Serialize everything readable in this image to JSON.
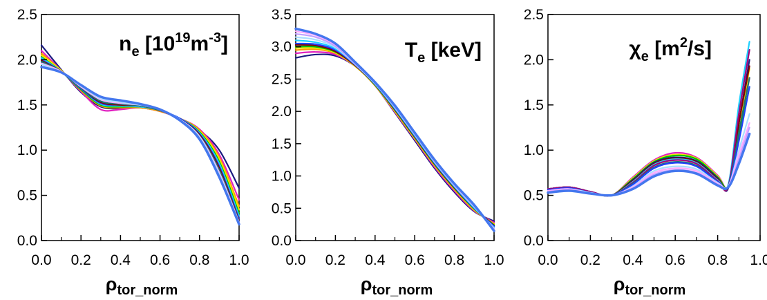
{
  "chart_data": [
    {
      "type": "line",
      "title": {
        "main": "n",
        "sub": "e",
        "rest_a": " [10",
        "sup": "19",
        "rest_b": "m",
        "sup2": "-3",
        "rest_c": "]"
      },
      "xlabel": {
        "main": "ρ",
        "sub": "tor_norm"
      },
      "xlim": [
        0,
        1
      ],
      "ylim": [
        0,
        2.5
      ],
      "xticks": [
        "0.0",
        "0.2",
        "0.4",
        "0.6",
        "0.8",
        "1.0"
      ],
      "yticks": [
        "0.0",
        "0.5",
        "1.0",
        "1.5",
        "2.0",
        "2.5"
      ],
      "x": [
        0,
        0.1,
        0.2,
        0.3,
        0.4,
        0.5,
        0.6,
        0.7,
        0.8,
        0.9,
        1.0
      ],
      "series": [
        {
          "color": "#1a1a80",
          "values": [
            2.16,
            1.89,
            1.64,
            1.48,
            1.46,
            1.47,
            1.43,
            1.35,
            1.22,
            1.0,
            0.58
          ]
        },
        {
          "color": "#e020c0",
          "values": [
            2.1,
            1.88,
            1.65,
            1.45,
            1.45,
            1.47,
            1.43,
            1.35,
            1.23,
            0.95,
            0.45
          ]
        },
        {
          "color": "#ff9900",
          "values": [
            2.07,
            1.88,
            1.66,
            1.49,
            1.47,
            1.47,
            1.43,
            1.35,
            1.22,
            0.92,
            0.38
          ]
        },
        {
          "color": "#f2e600",
          "values": [
            2.05,
            1.88,
            1.67,
            1.5,
            1.48,
            1.48,
            1.44,
            1.35,
            1.21,
            0.9,
            0.34
          ]
        },
        {
          "color": "#00c000",
          "values": [
            2.03,
            1.87,
            1.67,
            1.5,
            1.48,
            1.48,
            1.44,
            1.35,
            1.2,
            0.87,
            0.3
          ]
        },
        {
          "color": "#20d0ff",
          "values": [
            2.02,
            1.87,
            1.68,
            1.51,
            1.49,
            1.48,
            1.44,
            1.35,
            1.19,
            0.85,
            0.27
          ]
        },
        {
          "color": "#2040ff",
          "values": [
            2.0,
            1.87,
            1.68,
            1.52,
            1.5,
            1.49,
            1.44,
            1.35,
            1.18,
            0.82,
            0.24
          ]
        },
        {
          "color": "#800000",
          "values": [
            1.99,
            1.87,
            1.69,
            1.53,
            1.5,
            1.49,
            1.44,
            1.34,
            1.17,
            0.8,
            0.22
          ]
        },
        {
          "color": "#207070",
          "values": [
            1.98,
            1.87,
            1.69,
            1.54,
            1.51,
            1.49,
            1.44,
            1.34,
            1.16,
            0.78,
            0.21
          ]
        },
        {
          "color": "#ffaaff",
          "values": [
            1.96,
            1.87,
            1.7,
            1.56,
            1.52,
            1.5,
            1.45,
            1.34,
            1.15,
            0.75,
            0.2
          ]
        },
        {
          "color": "#aaddff",
          "values": [
            1.95,
            1.86,
            1.71,
            1.57,
            1.53,
            1.5,
            1.45,
            1.34,
            1.14,
            0.73,
            0.19
          ]
        },
        {
          "color": "#4477ee",
          "values": [
            1.92,
            1.86,
            1.72,
            1.59,
            1.55,
            1.51,
            1.45,
            1.33,
            1.12,
            0.7,
            0.18
          ]
        }
      ]
    },
    {
      "type": "line",
      "title": {
        "main": "T",
        "sub": "e",
        "rest_a": " [keV]",
        "sup": "",
        "rest_b": "",
        "sup2": "",
        "rest_c": ""
      },
      "xlabel": {
        "main": "ρ",
        "sub": "tor_norm"
      },
      "xlim": [
        0,
        1
      ],
      "ylim": [
        0,
        3.5
      ],
      "xticks": [
        "0.0",
        "0.2",
        "0.4",
        "0.6",
        "0.8",
        "1.0"
      ],
      "yticks": [
        "0.0",
        "0.5",
        "1.0",
        "1.5",
        "2.0",
        "2.5",
        "3.0",
        "3.5"
      ],
      "x": [
        0,
        0.1,
        0.2,
        0.3,
        0.4,
        0.5,
        0.6,
        0.7,
        0.8,
        0.9,
        1.0
      ],
      "series": [
        {
          "color": "#1a1a80",
          "values": [
            2.83,
            2.88,
            2.86,
            2.7,
            2.4,
            1.98,
            1.55,
            1.12,
            0.75,
            0.45,
            0.3
          ]
        },
        {
          "color": "#e020c0",
          "values": [
            2.9,
            2.92,
            2.88,
            2.7,
            2.4,
            1.99,
            1.57,
            1.14,
            0.77,
            0.46,
            0.28
          ]
        },
        {
          "color": "#ff9900",
          "values": [
            2.95,
            2.96,
            2.9,
            2.7,
            2.4,
            2.0,
            1.58,
            1.16,
            0.79,
            0.47,
            0.26
          ]
        },
        {
          "color": "#f2e600",
          "values": [
            2.98,
            2.98,
            2.91,
            2.7,
            2.41,
            2.01,
            1.59,
            1.17,
            0.8,
            0.48,
            0.25
          ]
        },
        {
          "color": "#00c000",
          "values": [
            3.0,
            3.0,
            2.92,
            2.71,
            2.41,
            2.02,
            1.6,
            1.18,
            0.81,
            0.49,
            0.24
          ]
        },
        {
          "color": "#800000",
          "values": [
            3.03,
            3.02,
            2.93,
            2.71,
            2.42,
            2.03,
            1.61,
            1.19,
            0.82,
            0.5,
            0.23
          ]
        },
        {
          "color": "#2040ff",
          "values": [
            3.05,
            3.04,
            2.95,
            2.72,
            2.42,
            2.04,
            1.62,
            1.2,
            0.83,
            0.5,
            0.22
          ]
        },
        {
          "color": "#20d0ff",
          "values": [
            3.1,
            3.07,
            2.97,
            2.73,
            2.43,
            2.05,
            1.63,
            1.21,
            0.84,
            0.51,
            0.2
          ]
        },
        {
          "color": "#aaddff",
          "values": [
            3.15,
            3.11,
            2.99,
            2.73,
            2.43,
            2.06,
            1.64,
            1.22,
            0.85,
            0.52,
            0.19
          ]
        },
        {
          "color": "#c0a0ff",
          "values": [
            3.2,
            3.15,
            3.01,
            2.74,
            2.44,
            2.07,
            1.65,
            1.23,
            0.86,
            0.53,
            0.18
          ]
        },
        {
          "color": "#ffaaff",
          "values": [
            3.24,
            3.18,
            3.03,
            2.75,
            2.44,
            2.08,
            1.66,
            1.24,
            0.87,
            0.54,
            0.17
          ]
        },
        {
          "color": "#4477ee",
          "values": [
            3.28,
            3.2,
            3.05,
            2.76,
            2.45,
            2.09,
            1.67,
            1.25,
            0.88,
            0.55,
            0.15
          ]
        }
      ]
    },
    {
      "type": "line",
      "title": {
        "main": "χ",
        "sub": "e",
        "rest_a": " [m",
        "sup": "2",
        "rest_b": "/s]",
        "sup2": "",
        "rest_c": ""
      },
      "xlabel": {
        "main": "ρ",
        "sub": "tor_norm"
      },
      "xlim": [
        0,
        1
      ],
      "ylim": [
        0,
        2.5
      ],
      "xticks": [
        "0.0",
        "0.2",
        "0.4",
        "0.6",
        "0.8",
        "1.0"
      ],
      "yticks": [
        "0.0",
        "0.5",
        "1.0",
        "1.5",
        "2.0",
        "2.5"
      ],
      "x": [
        0,
        0.1,
        0.2,
        0.3,
        0.4,
        0.5,
        0.6,
        0.7,
        0.8,
        0.85,
        0.9,
        0.95
      ],
      "series": [
        {
          "color": "#e020c0",
          "values": [
            0.57,
            0.59,
            0.54,
            0.5,
            0.7,
            0.89,
            0.97,
            0.92,
            0.72,
            0.6,
            1.2,
            1.8
          ]
        },
        {
          "color": "#f2e600",
          "values": [
            0.57,
            0.59,
            0.54,
            0.5,
            0.69,
            0.88,
            0.95,
            0.91,
            0.71,
            0.6,
            1.25,
            1.9
          ]
        },
        {
          "color": "#00c000",
          "values": [
            0.57,
            0.59,
            0.54,
            0.5,
            0.68,
            0.87,
            0.94,
            0.9,
            0.7,
            0.6,
            1.15,
            1.7
          ]
        },
        {
          "color": "#1a1a80",
          "values": [
            0.57,
            0.59,
            0.54,
            0.5,
            0.67,
            0.86,
            0.92,
            0.88,
            0.69,
            0.58,
            1.3,
            2.0
          ]
        },
        {
          "color": "#800000",
          "values": [
            0.57,
            0.59,
            0.54,
            0.5,
            0.66,
            0.85,
            0.91,
            0.87,
            0.68,
            0.6,
            1.3,
            1.93
          ]
        },
        {
          "color": "#20d0ff",
          "values": [
            0.57,
            0.59,
            0.54,
            0.5,
            0.65,
            0.84,
            0.9,
            0.86,
            0.67,
            0.62,
            1.5,
            2.2
          ]
        },
        {
          "color": "#a0007a",
          "values": [
            0.57,
            0.59,
            0.54,
            0.5,
            0.64,
            0.83,
            0.89,
            0.85,
            0.66,
            0.6,
            1.4,
            2.11
          ]
        },
        {
          "color": "#207070",
          "values": [
            0.56,
            0.58,
            0.53,
            0.5,
            0.63,
            0.81,
            0.87,
            0.83,
            0.65,
            0.6,
            1.2,
            1.8
          ]
        },
        {
          "color": "#2040ff",
          "values": [
            0.56,
            0.58,
            0.53,
            0.5,
            0.62,
            0.8,
            0.86,
            0.82,
            0.65,
            0.6,
            1.1,
            1.7
          ]
        },
        {
          "color": "#aaddff",
          "values": [
            0.55,
            0.57,
            0.53,
            0.5,
            0.6,
            0.77,
            0.82,
            0.79,
            0.64,
            0.6,
            1.0,
            1.4
          ]
        },
        {
          "color": "#ffaaff",
          "values": [
            0.55,
            0.57,
            0.52,
            0.5,
            0.59,
            0.75,
            0.8,
            0.77,
            0.63,
            0.6,
            0.95,
            1.3
          ]
        },
        {
          "color": "#c0a0ff",
          "values": [
            0.54,
            0.56,
            0.52,
            0.5,
            0.58,
            0.73,
            0.78,
            0.75,
            0.62,
            0.59,
            0.9,
            1.25
          ]
        },
        {
          "color": "#4477ee",
          "values": [
            0.53,
            0.55,
            0.52,
            0.5,
            0.57,
            0.71,
            0.77,
            0.74,
            0.61,
            0.59,
            0.85,
            1.18
          ]
        }
      ]
    }
  ]
}
